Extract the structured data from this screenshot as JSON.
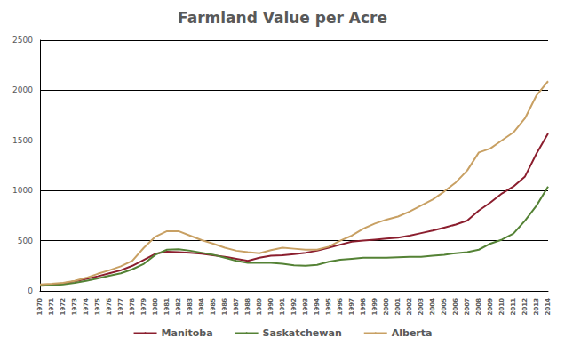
{
  "chart_data": {
    "type": "line",
    "title": "Farmland Value per Acre",
    "categories": [
      "1970",
      "1971",
      "1972",
      "1973",
      "1974",
      "1975",
      "1976",
      "1977",
      "1978",
      "1979",
      "1980",
      "1981",
      "1982",
      "1983",
      "1984",
      "1985",
      "1986",
      "1987",
      "1988",
      "1989",
      "1990",
      "1991",
      "1992",
      "1993",
      "1994",
      "1995",
      "1996",
      "1997",
      "1998",
      "1999",
      "2000",
      "2001",
      "2002",
      "2003",
      "2004",
      "2005",
      "2006",
      "2007",
      "2008",
      "2009",
      "2010",
      "2011",
      "2012",
      "2013",
      "2014"
    ],
    "series": [
      {
        "name": "Manitoba",
        "color": "#8b1e2e",
        "values": [
          55,
          60,
          75,
          95,
          120,
          145,
          175,
          205,
          250,
          310,
          370,
          390,
          385,
          380,
          370,
          355,
          340,
          320,
          300,
          330,
          350,
          355,
          365,
          380,
          400,
          430,
          460,
          490,
          500,
          510,
          520,
          530,
          550,
          575,
          600,
          630,
          660,
          700,
          800,
          880,
          970,
          1040,
          1140,
          1370,
          1570
        ]
      },
      {
        "name": "Saskatchewan",
        "color": "#548235",
        "values": [
          50,
          55,
          65,
          80,
          100,
          125,
          150,
          175,
          215,
          270,
          360,
          410,
          415,
          400,
          380,
          360,
          330,
          300,
          280,
          280,
          280,
          270,
          255,
          250,
          260,
          290,
          310,
          320,
          330,
          330,
          330,
          335,
          340,
          340,
          350,
          360,
          375,
          385,
          410,
          470,
          510,
          570,
          700,
          850,
          1040
        ]
      },
      {
        "name": "Alberta",
        "color": "#c8a063",
        "values": [
          65,
          70,
          80,
          100,
          130,
          170,
          205,
          245,
          300,
          430,
          540,
          595,
          595,
          550,
          505,
          470,
          430,
          400,
          385,
          375,
          405,
          430,
          420,
          410,
          410,
          440,
          500,
          550,
          620,
          670,
          710,
          740,
          790,
          850,
          910,
          990,
          1080,
          1200,
          1380,
          1420,
          1500,
          1580,
          1720,
          1950,
          2090
        ]
      }
    ],
    "ylim": [
      0,
      2500
    ],
    "yticks": [
      0,
      500,
      1000,
      1500,
      2000,
      2500
    ],
    "grid": true,
    "legend": "bottom"
  }
}
